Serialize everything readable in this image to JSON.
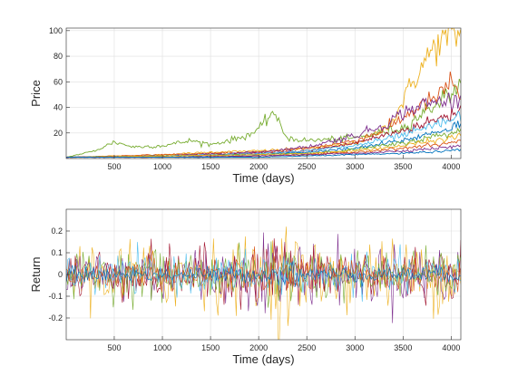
{
  "chart_data": [
    {
      "type": "line",
      "title": "",
      "xlabel": "Time (days)",
      "ylabel": "Price",
      "xlim": [
        1,
        4100
      ],
      "ylim": [
        0,
        102
      ],
      "x_ticks": [
        500,
        1000,
        1500,
        2000,
        2500,
        3000,
        3500,
        4000
      ],
      "y_ticks": [
        20,
        40,
        60,
        80,
        100
      ],
      "x_tick_labels": [
        "500",
        "1000",
        "1500",
        "2000",
        "2500",
        "3000",
        "3500",
        "4000"
      ],
      "y_tick_labels": [
        "20",
        "40",
        "60",
        "80",
        "100"
      ],
      "grid": true,
      "legend": "none",
      "series": [
        {
          "color": "#EDB120",
          "x": [
            1,
            500,
            1000,
            1500,
            2000,
            2500,
            2800,
            3000,
            3200,
            3400,
            3500,
            3600,
            3700,
            3800,
            3900,
            4000,
            4100
          ],
          "values": [
            1,
            2,
            3,
            5,
            6,
            8,
            10,
            12,
            18,
            30,
            45,
            60,
            72,
            85,
            92,
            95,
            98
          ]
        },
        {
          "color": "#77AC30",
          "x": [
            1,
            300,
            500,
            700,
            1000,
            1300,
            1500,
            1800,
            2000,
            2100,
            2150,
            2200,
            2300,
            2500,
            3000,
            3500,
            4000,
            4100
          ],
          "values": [
            1,
            6,
            13,
            9,
            10,
            14,
            11,
            16,
            22,
            32,
            38,
            28,
            16,
            14,
            16,
            24,
            52,
            55
          ]
        },
        {
          "color": "#D95319",
          "x": [
            1,
            1000,
            2000,
            2500,
            3000,
            3300,
            3500,
            3700,
            3900,
            4000,
            4100
          ],
          "values": [
            1,
            3,
            5,
            8,
            14,
            22,
            32,
            42,
            50,
            62,
            48
          ]
        },
        {
          "color": "#7E2F8E",
          "x": [
            1,
            1000,
            2000,
            2500,
            3000,
            3300,
            3500,
            3700,
            4000,
            4100
          ],
          "values": [
            1,
            2,
            5,
            9,
            18,
            26,
            36,
            42,
            46,
            44
          ]
        },
        {
          "color": "#A2142F",
          "x": [
            1,
            1000,
            2000,
            2500,
            3000,
            3500,
            4000,
            4100
          ],
          "values": [
            1,
            2,
            4,
            6,
            12,
            22,
            34,
            40
          ]
        },
        {
          "color": "#4DBEEE",
          "x": [
            1,
            1000,
            2000,
            2500,
            3000,
            3500,
            4000,
            4100
          ],
          "values": [
            1,
            2,
            4,
            6,
            10,
            18,
            30,
            34
          ]
        },
        {
          "color": "#0072BD",
          "x": [
            1,
            1000,
            2000,
            2500,
            3000,
            3500,
            4000,
            4100
          ],
          "values": [
            1,
            2,
            3,
            5,
            8,
            14,
            24,
            28
          ]
        },
        {
          "color": "#77AC30",
          "x": [
            1,
            1000,
            2000,
            2500,
            3000,
            3500,
            4000,
            4100
          ],
          "values": [
            1,
            2,
            3,
            4,
            7,
            12,
            20,
            22
          ]
        },
        {
          "color": "#EDB120",
          "x": [
            1,
            1000,
            2000,
            2500,
            3000,
            3500,
            4000,
            4100
          ],
          "values": [
            1,
            2,
            3,
            4,
            6,
            10,
            16,
            18
          ]
        },
        {
          "color": "#D95319",
          "x": [
            1,
            1000,
            2000,
            2500,
            3000,
            3500,
            4000,
            4100
          ],
          "values": [
            1,
            1,
            2,
            3,
            5,
            8,
            12,
            14
          ]
        },
        {
          "color": "#7E2F8E",
          "x": [
            1,
            1000,
            2000,
            2500,
            3000,
            3500,
            4000,
            4100
          ],
          "values": [
            1,
            1,
            2,
            3,
            4,
            6,
            9,
            10
          ]
        },
        {
          "color": "#0072BD",
          "x": [
            1,
            1000,
            2000,
            2500,
            3000,
            3500,
            4000,
            4100
          ],
          "values": [
            1,
            1,
            1,
            2,
            3,
            4,
            6,
            7
          ]
        }
      ]
    },
    {
      "type": "line",
      "title": "",
      "xlabel": "Time (days)",
      "ylabel": "Return",
      "xlim": [
        1,
        4100
      ],
      "ylim": [
        -0.3,
        0.3
      ],
      "x_ticks": [
        500,
        1000,
        1500,
        2000,
        2500,
        3000,
        3500,
        4000
      ],
      "y_ticks": [
        -0.2,
        -0.1,
        0,
        0.1,
        0.2
      ],
      "x_tick_labels": [
        "500",
        "1000",
        "1500",
        "2000",
        "2500",
        "3000",
        "3500",
        "4000"
      ],
      "y_tick_labels": [
        "-0.2",
        "-0.1",
        "0",
        "0.1",
        "0.2"
      ],
      "grid": true,
      "legend": "none",
      "series": [
        {
          "color": "#EDB120",
          "x": [
            1,
            4100
          ],
          "values": [
            0,
            0
          ],
          "amplitude": 0.13
        },
        {
          "color": "#7E2F8E",
          "x": [
            1,
            4100
          ],
          "values": [
            0,
            0
          ],
          "amplitude": 0.11
        },
        {
          "color": "#A2142F",
          "x": [
            1,
            4100
          ],
          "values": [
            0,
            0
          ],
          "amplitude": 0.1
        },
        {
          "color": "#77AC30",
          "x": [
            1,
            4100
          ],
          "values": [
            0,
            0
          ],
          "amplitude": 0.09
        },
        {
          "color": "#4DBEEE",
          "x": [
            1,
            4100
          ],
          "values": [
            0,
            0
          ],
          "amplitude": 0.07
        },
        {
          "color": "#D95319",
          "x": [
            1,
            4100
          ],
          "values": [
            0,
            0
          ],
          "amplitude": 0.06
        },
        {
          "color": "#0072BD",
          "x": [
            1,
            4100
          ],
          "values": [
            0,
            0
          ],
          "amplitude": 0.03
        }
      ]
    }
  ]
}
